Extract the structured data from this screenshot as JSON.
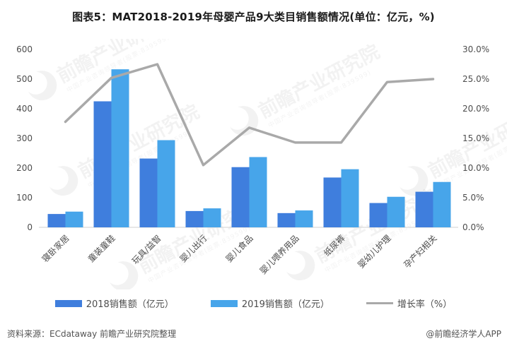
{
  "title": "图表5：MAT2018-2019年母婴产品9大类目销售额情况(单位：亿元，%)",
  "watermark": {
    "brand": "前瞻产业研究院",
    "tagline": "中国产业咨询领导者(股票:839599)"
  },
  "chart_data": {
    "type": "bar",
    "subtype": "grouped-bars-with-growth-line",
    "title": "图表5：MAT2018-2019年母婴产品9大类目销售额情况(单位：亿元，%)",
    "categories": [
      "寝卧家居",
      "童装童鞋",
      "玩具/益智",
      "婴儿出行",
      "婴儿食品",
      "婴儿喂养用品",
      "纸尿裤",
      "婴幼儿护理",
      "孕产妇相关"
    ],
    "series": [
      {
        "name": "2018销售额（亿元）",
        "type": "bar",
        "axis": "left",
        "color": "#3f7edd",
        "values": [
          45,
          425,
          232,
          55,
          203,
          48,
          168,
          82,
          120
        ]
      },
      {
        "name": "2019销售额（亿元）",
        "type": "bar",
        "axis": "left",
        "color": "#47a5ea",
        "values": [
          53,
          533,
          294,
          64,
          237,
          57,
          196,
          103,
          153
        ]
      },
      {
        "name": "增长率（%）",
        "type": "line",
        "axis": "right",
        "color": "#a9a9a9",
        "values": [
          17.8,
          25.2,
          27.5,
          10.5,
          16.8,
          14.3,
          14.3,
          24.5,
          25.0
        ]
      }
    ],
    "left_axis": {
      "min": 0,
      "max": 600,
      "step": 100,
      "ticks": [
        "0",
        "100",
        "200",
        "300",
        "400",
        "500",
        "600"
      ]
    },
    "right_axis": {
      "min": 0,
      "max": 30,
      "step": 5,
      "ticks": [
        "0.0%",
        "5.0%",
        "10.0%",
        "15.0%",
        "20.0%",
        "25.0%",
        "30.0%"
      ]
    },
    "grid": false,
    "legend_position": "bottom"
  },
  "legend": {
    "items": [
      {
        "label": "2018销售额（亿元）",
        "swatch": "bar",
        "color": "#3f7edd"
      },
      {
        "label": "2019销售额（亿元）",
        "swatch": "bar",
        "color": "#47a5ea"
      },
      {
        "label": "增长率（%）",
        "swatch": "line",
        "color": "#a9a9a9"
      }
    ]
  },
  "footer": {
    "source": "资料来源：ECdataway 前瞻产业研究院整理",
    "credit": "@前瞻经济学人APP"
  }
}
